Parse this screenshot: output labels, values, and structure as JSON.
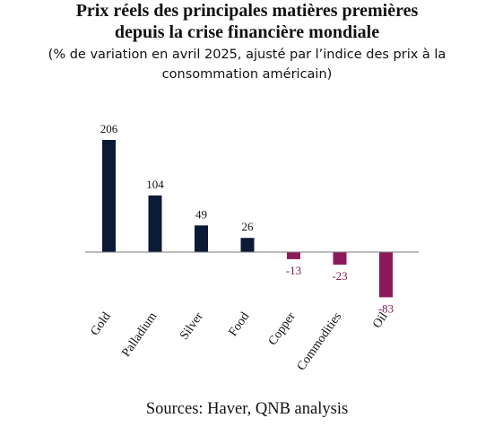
{
  "title": {
    "line1": "Prix réels des principales matières premières",
    "line2": "depuis la crise financière mondiale"
  },
  "subtitle": {
    "line1": "(% de variation en avril 2025, ajusté par l’indice des prix à la",
    "line2": "consommation américain)"
  },
  "source": "Sources: Haver, QNB analysis",
  "colors": {
    "positive": "#0c1a36",
    "negative": "#8c1a5a",
    "axis": "#777777",
    "label_positive": "#111111",
    "label_negative": "#8c1a5a"
  },
  "chart_data": {
    "type": "bar",
    "categories": [
      "Gold",
      "Palladium",
      "Silver",
      "Food",
      "Copper",
      "Commodities",
      "Oil"
    ],
    "values": [
      206,
      104,
      49,
      26,
      -13,
      -23,
      -83
    ],
    "data_labels": [
      "206",
      "104",
      "49",
      "26",
      "-13",
      "-23",
      "-83"
    ],
    "ylim": [
      -83,
      206
    ],
    "grid": false,
    "legend": "none"
  }
}
